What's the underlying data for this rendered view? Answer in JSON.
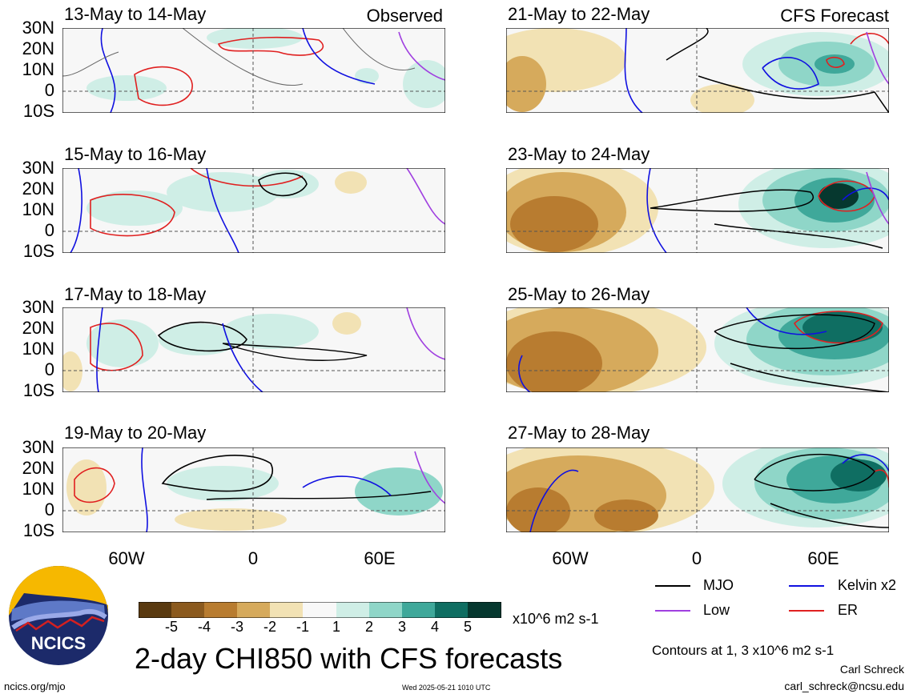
{
  "panels_left": [
    {
      "title": "13-May to 14-May",
      "tag": "Observed"
    },
    {
      "title": "15-May to 16-May",
      "tag": ""
    },
    {
      "title": "17-May to 18-May",
      "tag": ""
    },
    {
      "title": "19-May to 20-May",
      "tag": ""
    }
  ],
  "panels_right": [
    {
      "title": "21-May to 22-May",
      "tag": "CFS Forecast"
    },
    {
      "title": "23-May to 24-May",
      "tag": ""
    },
    {
      "title": "25-May to 26-May",
      "tag": ""
    },
    {
      "title": "27-May to 28-May",
      "tag": ""
    }
  ],
  "lat_labels": [
    "30N",
    "20N",
    "10N",
    "0",
    "10S"
  ],
  "lon_labels": [
    "60W",
    "0",
    "60E"
  ],
  "legend": {
    "mjo": "MJO",
    "kelvin": "Kelvin x2",
    "low": "Low",
    "er": "ER",
    "colors": {
      "mjo": "#000000",
      "kelvin": "#1010e0",
      "low": "#a040e0",
      "er": "#e02020"
    }
  },
  "colorbar": {
    "ticks": [
      "-5",
      "-4",
      "-3",
      "-2",
      "-1",
      "1",
      "2",
      "3",
      "4",
      "5"
    ],
    "unit": "x10^6 m2 s-1",
    "colors": [
      "#5a3a10",
      "#8b5a1e",
      "#b87c30",
      "#d6aa5c",
      "#f2e2b4",
      "#f8f8f8",
      "#cfeee6",
      "#8fd6c8",
      "#3fa89a",
      "#0f6e62",
      "#06382f"
    ]
  },
  "logo_text": "NCICS",
  "main_title": "2-day CHI850 with CFS forecasts",
  "contour_note": "Contours at 1, 3 x10^6 m2 s-1",
  "author": "Carl Schreck",
  "email": "carl_schreck@ncsu.edu",
  "url": "ncics.org/mjo",
  "timestamp": "Wed 2025-05-21 1010 UTC"
}
